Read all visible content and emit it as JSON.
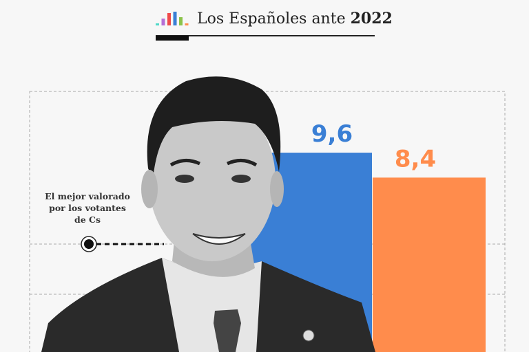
{
  "header": {
    "title_prefix": "Los Españoles ante",
    "title_year": "2022",
    "logo_colors": [
      "#4fd8c8",
      "#b66fd6",
      "#f04a4a",
      "#3a7fd5",
      "#8bc34a",
      "#ff8c4c"
    ]
  },
  "annotation": "El mejor valorado por los votantes de Cs",
  "chart_data": {
    "type": "bar",
    "categories": [
      "",
      ""
    ],
    "values": [
      9.6,
      8.4
    ],
    "data_labels": [
      "9,6",
      "8,4"
    ],
    "colors": [
      "#3a7fd5",
      "#ff8c4c"
    ],
    "grid": true
  }
}
